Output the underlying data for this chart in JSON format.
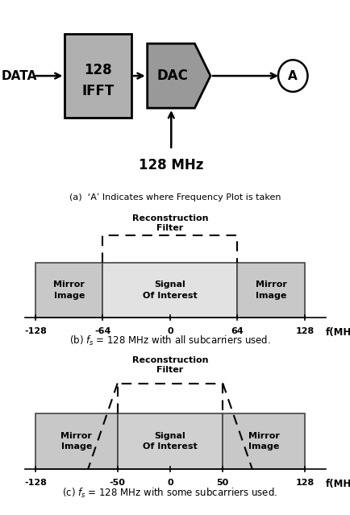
{
  "bg_color": "#ffffff",
  "title_a": "(a)  ‘A’ Indicates where Frequency Plot is taken",
  "title_b": "(b) $f_s$ = 128 MHz with all subcarriers used.",
  "title_c": "(c) $f_s$ = 128 MHz with some subcarriers used.",
  "ifft_color": "#b0b0b0",
  "dac_color": "#999999",
  "mirror_color": "#c8c8c8",
  "signal_color_b": "#e2e2e2",
  "signal_color_c": "#d0d0d0",
  "x_ticks_b": [
    -128,
    -64,
    0,
    64,
    128
  ],
  "x_ticks_c": [
    -128,
    -50,
    0,
    50,
    128
  ],
  "x_label": "f(MHz)"
}
